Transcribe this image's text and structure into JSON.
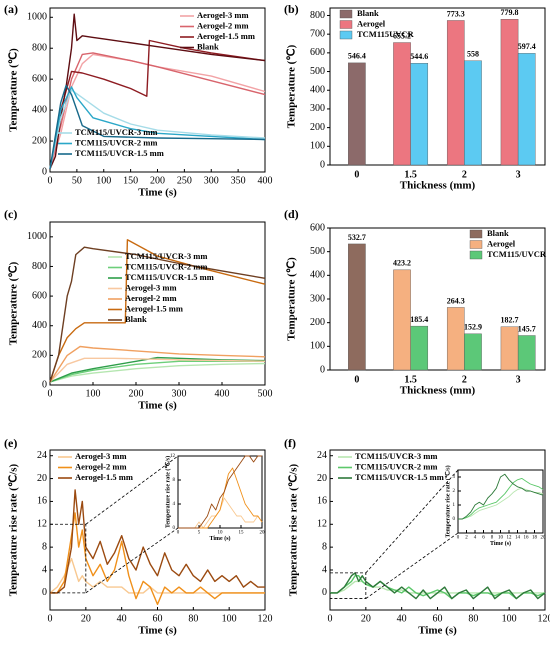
{
  "chart_data": [
    {
      "type": "line",
      "label": "(a)",
      "xlabel": "Time (s)",
      "ylabel": "Temperature (℃)",
      "xlim": [
        0,
        400
      ],
      "xticks": [
        0,
        50,
        100,
        150,
        200,
        250,
        300,
        350,
        400
      ],
      "ylim": [
        0,
        1060
      ],
      "yticks": [
        0,
        200,
        400,
        600,
        800,
        1000
      ],
      "series": [
        {
          "name": "Aerogel-3 mm",
          "color": "#f2a3a6",
          "x": [
            0,
            20,
            40,
            60,
            80,
            150,
            200,
            300,
            400
          ],
          "values": [
            20,
            250,
            550,
            700,
            760,
            720,
            680,
            620,
            520
          ]
        },
        {
          "name": "Aerogel-2 mm",
          "color": "#d8646c",
          "x": [
            0,
            20,
            40,
            60,
            80,
            150,
            200,
            300,
            400
          ],
          "values": [
            20,
            300,
            600,
            760,
            770,
            720,
            680,
            590,
            500
          ]
        },
        {
          "name": "Aerogel-1.5 mm",
          "color": "#8e1c22",
          "x": [
            0,
            20,
            40,
            60,
            100,
            150,
            180,
            185,
            250,
            300,
            400
          ],
          "values": [
            20,
            400,
            650,
            640,
            600,
            540,
            490,
            850,
            800,
            770,
            720
          ]
        },
        {
          "name": "Blank",
          "color": "#5e0d12",
          "x": [
            0,
            10,
            20,
            30,
            40,
            45,
            50,
            60,
            80,
            100,
            200,
            300,
            400
          ],
          "values": [
            20,
            100,
            350,
            550,
            800,
            1020,
            850,
            880,
            870,
            860,
            810,
            760,
            720
          ]
        },
        {
          "name": "TCM115/UVCR-3 mm",
          "color": "#a6dce8",
          "x": [
            0,
            20,
            40,
            60,
            100,
            150,
            200,
            300,
            400
          ],
          "values": [
            20,
            350,
            530,
            480,
            380,
            310,
            270,
            240,
            220
          ]
        },
        {
          "name": "TCM115/UVCR-2 mm",
          "color": "#2aa7c8",
          "x": [
            0,
            20,
            40,
            50,
            80,
            150,
            200,
            300,
            400
          ],
          "values": [
            20,
            400,
            550,
            480,
            350,
            280,
            250,
            230,
            210
          ]
        },
        {
          "name": "TCM115/UVCR-1.5 mm",
          "color": "#17698a",
          "x": [
            0,
            20,
            30,
            40,
            60,
            100,
            200,
            300,
            400
          ],
          "values": [
            20,
            450,
            560,
            500,
            300,
            230,
            220,
            215,
            210
          ]
        }
      ]
    },
    {
      "type": "bar",
      "label": "(b)",
      "xlabel": "Thickness (mm)",
      "ylabel": "Temperature (℃)",
      "categories": [
        "0",
        "1.5",
        "2",
        "3"
      ],
      "ylim": [
        0,
        840
      ],
      "yticks": [
        0,
        100,
        200,
        300,
        400,
        500,
        600,
        700,
        800
      ],
      "series": [
        {
          "name": "Blank",
          "color": "#8c6a6a",
          "values": [
            546.4,
            null,
            null,
            null
          ]
        },
        {
          "name": "Aerogel",
          "color": "#ec7680",
          "values": [
            null,
            655.2,
            773.3,
            779.8
          ]
        },
        {
          "name": "TCM115UVCR",
          "color": "#5ccaf2",
          "values": [
            null,
            544.6,
            558,
            597.4
          ]
        }
      ]
    },
    {
      "type": "line",
      "label": "(c)",
      "xlabel": "Time (s)",
      "ylabel": "Temperature (℃)",
      "xlim": [
        0,
        500
      ],
      "xticks": [
        0,
        100,
        200,
        300,
        400,
        500
      ],
      "ylim": [
        0,
        1100
      ],
      "yticks": [
        0,
        200,
        400,
        600,
        800,
        1000
      ],
      "series": [
        {
          "name": "TCM115/UVCR-3 mm",
          "color": "#b5e6b0",
          "x": [
            0,
            50,
            100,
            200,
            300,
            400,
            500
          ],
          "values": [
            20,
            60,
            80,
            110,
            130,
            140,
            145
          ]
        },
        {
          "name": "TCM115/UVCR-2 mm",
          "color": "#6ccf7a",
          "x": [
            0,
            50,
            100,
            200,
            300,
            400,
            500
          ],
          "values": [
            20,
            70,
            100,
            140,
            160,
            160,
            160
          ]
        },
        {
          "name": "TCM115/UVCR-1.5 mm",
          "color": "#2e9e4a",
          "x": [
            0,
            50,
            100,
            200,
            250,
            300,
            400,
            500
          ],
          "values": [
            20,
            80,
            110,
            160,
            185,
            180,
            170,
            165
          ]
        },
        {
          "name": "Aerogel-3 mm",
          "color": "#f8c8a0",
          "x": [
            0,
            40,
            80,
            150,
            300,
            500
          ],
          "values": [
            20,
            140,
            180,
            180,
            170,
            160
          ]
        },
        {
          "name": "Aerogel-2 mm",
          "color": "#f0a060",
          "x": [
            0,
            40,
            70,
            100,
            200,
            300,
            400,
            500
          ],
          "values": [
            20,
            200,
            260,
            250,
            230,
            210,
            200,
            190
          ]
        },
        {
          "name": "Aerogel-1.5 mm",
          "color": "#c86a10",
          "x": [
            0,
            20,
            40,
            60,
            80,
            100,
            175,
            180,
            250,
            350,
            500
          ],
          "values": [
            20,
            200,
            320,
            380,
            420,
            420,
            420,
            980,
            870,
            790,
            680
          ]
        },
        {
          "name": "Blank",
          "color": "#6e3f22",
          "x": [
            0,
            20,
            40,
            50,
            60,
            80,
            100,
            200,
            300,
            400,
            500
          ],
          "values": [
            20,
            200,
            600,
            700,
            880,
            930,
            920,
            880,
            820,
            770,
            720
          ]
        }
      ]
    },
    {
      "type": "bar",
      "label": "(d)",
      "xlabel": "Thickness (mm)",
      "ylabel": "Temperature (℃)",
      "categories": [
        "0",
        "1.5",
        "2",
        "3"
      ],
      "ylim": [
        0,
        600
      ],
      "yticks": [
        0,
        100,
        200,
        300,
        400,
        500,
        600
      ],
      "series": [
        {
          "name": "Blank",
          "color": "#8e6b5e",
          "values": [
            532.7,
            null,
            null,
            null
          ]
        },
        {
          "name": "Aerogel",
          "color": "#f5b080",
          "values": [
            null,
            423.2,
            264.3,
            182.7
          ]
        },
        {
          "name": "TCM115/UVCR",
          "color": "#5cc878",
          "values": [
            null,
            185.4,
            152.9,
            145.7
          ]
        }
      ]
    },
    {
      "type": "line",
      "label": "(e)",
      "xlabel": "Time (s)",
      "ylabel": "Temperature rise rate (℃/s)",
      "xlim": [
        0,
        120
      ],
      "xticks": [
        0,
        20,
        40,
        60,
        80,
        100,
        120
      ],
      "ylim": [
        -3,
        25
      ],
      "yticks": [
        0,
        4,
        8,
        12,
        16,
        20,
        24
      ],
      "x": [
        0,
        4,
        8,
        12,
        14,
        16,
        18,
        20,
        24,
        28,
        32,
        36,
        40,
        44,
        48,
        52,
        56,
        60,
        64,
        68,
        72,
        76,
        80,
        84,
        88,
        92,
        96,
        100,
        104,
        108,
        112,
        116,
        120
      ],
      "series": [
        {
          "name": "Aerogel-3 mm",
          "color": "#f8c890",
          "values": [
            0,
            1,
            3,
            6,
            4,
            2,
            3,
            2,
            1,
            2,
            1,
            1,
            1,
            0,
            0,
            0,
            1,
            0,
            0,
            0,
            0,
            0,
            0,
            0,
            0,
            0,
            0,
            0,
            0,
            0,
            0,
            0,
            0
          ]
        },
        {
          "name": "Aerogel-2 mm",
          "color": "#f0901a",
          "values": [
            0,
            0,
            2,
            10,
            14,
            8,
            11,
            6,
            3,
            5,
            2,
            4,
            9,
            3,
            -1,
            2,
            1,
            -2,
            1,
            0,
            1,
            0,
            0,
            1,
            0,
            -1,
            0,
            0,
            0,
            0,
            0,
            0,
            0
          ]
        },
        {
          "name": "Aerogel-1.5 mm",
          "color": "#9b4a10",
          "values": [
            0,
            0,
            1,
            8,
            18,
            12,
            16,
            8,
            6,
            9,
            5,
            7,
            10,
            6,
            4,
            8,
            5,
            3,
            7,
            4,
            3,
            5,
            3,
            2,
            4,
            2,
            3,
            2,
            3,
            1,
            2,
            1,
            1
          ]
        }
      ],
      "inset": {
        "xlabel": "Time (s)",
        "ylabel": "Temperature rise rate (℃/s)",
        "xlim": [
          0,
          20
        ],
        "xticks": [
          0,
          5,
          10,
          15,
          20
        ],
        "ylim": [
          0,
          12
        ],
        "yticks": [
          0,
          4,
          8,
          12
        ],
        "x": [
          0,
          1,
          2,
          3,
          4,
          5,
          6,
          7,
          8,
          9,
          10,
          11,
          12,
          13,
          14,
          15,
          16,
          17,
          18,
          19,
          20
        ],
        "series": [
          {
            "color": "#f8c890",
            "values": [
              0,
              0,
              0,
              0,
              0,
              1,
              0,
              1,
              2,
              2,
              3,
              5,
              4,
              3,
              2,
              2,
              1,
              1,
              1,
              2,
              1
            ]
          },
          {
            "color": "#f0901a",
            "values": [
              0,
              0,
              0,
              0,
              0,
              0,
              0,
              0,
              1,
              2,
              3,
              6,
              9,
              10,
              8,
              6,
              4,
              3,
              2,
              2,
              1
            ]
          },
          {
            "color": "#9b4a10",
            "values": [
              0,
              0,
              0,
              0,
              0,
              0,
              1,
              2,
              4,
              3,
              5,
              6,
              8,
              9,
              10,
              11,
              12,
              12,
              11,
              12,
              12
            ]
          }
        ]
      }
    },
    {
      "type": "line",
      "label": "(f)",
      "xlabel": "Time (s)",
      "ylabel": "Temperature rise rate (℃/s)",
      "xlim": [
        0,
        120
      ],
      "xticks": [
        0,
        20,
        40,
        60,
        80,
        100,
        120
      ],
      "ylim": [
        -3,
        25
      ],
      "yticks": [
        0,
        4,
        8,
        12,
        16,
        20,
        24
      ],
      "x": [
        0,
        4,
        8,
        12,
        14,
        16,
        18,
        20,
        24,
        28,
        32,
        36,
        40,
        44,
        48,
        52,
        56,
        60,
        64,
        68,
        72,
        76,
        80,
        84,
        88,
        92,
        96,
        100,
        104,
        108,
        112,
        116,
        120
      ],
      "series": [
        {
          "name": "TCM115/UVCR-3 mm",
          "color": "#b8e6b0",
          "values": [
            0,
            0,
            0.5,
            1.5,
            2,
            2,
            2,
            1.5,
            1,
            1,
            0.5,
            0.5,
            0.5,
            0,
            0,
            0,
            0,
            0,
            0,
            0,
            0,
            0,
            0,
            0,
            0,
            0,
            0,
            0,
            0,
            0,
            0,
            0,
            0
          ]
        },
        {
          "name": "TCM115/UVCR-2 mm",
          "color": "#5cc86a",
          "values": [
            0,
            0,
            1,
            2,
            3,
            3,
            2,
            1.5,
            1,
            2,
            1,
            0.5,
            0,
            1,
            0,
            -0.5,
            0,
            0.5,
            0,
            -1,
            0,
            0,
            -0.5,
            0,
            0,
            -0.5,
            0,
            0,
            -1,
            0,
            0,
            -0.5,
            0
          ]
        },
        {
          "name": "TCM115/UVCR-1.5 mm",
          "color": "#2e7a3a",
          "values": [
            0,
            0,
            1,
            3,
            3.5,
            2,
            3,
            2,
            1,
            2,
            1,
            0,
            1,
            0,
            -1,
            0.5,
            -1,
            0,
            1,
            -1,
            0,
            0.5,
            -1,
            0,
            1,
            -1,
            0,
            0.5,
            -1,
            0,
            0.5,
            -1,
            0
          ]
        }
      ],
      "inset": {
        "xlabel": "Time (s)",
        "ylabel": "Temperature rise rate (℃/s)",
        "xlim": [
          0,
          20
        ],
        "xticks": [
          0,
          2,
          4,
          6,
          8,
          10,
          12,
          14,
          16,
          18,
          20
        ],
        "ylim": [
          -1,
          3.5
        ],
        "yticks": [
          0,
          1,
          2,
          3
        ],
        "x": [
          0,
          1,
          2,
          3,
          4,
          5,
          6,
          7,
          8,
          9,
          10,
          11,
          12,
          13,
          14,
          15,
          16,
          17,
          18,
          19,
          20
        ],
        "series": [
          {
            "color": "#b8e6b0",
            "values": [
              0,
              0,
              0.1,
              0.2,
              0.4,
              0.6,
              0.7,
              0.8,
              0.9,
              1,
              1.2,
              1.4,
              1.6,
              1.9,
              2.1,
              2.2,
              2.1,
              2,
              1.9,
              1.9,
              1.8
            ]
          },
          {
            "color": "#5cc86a",
            "values": [
              0,
              0,
              0.1,
              0.3,
              0.6,
              0.8,
              0.9,
              1,
              1.1,
              1.2,
              1.5,
              1.8,
              2.2,
              2.6,
              2.8,
              2.9,
              2.7,
              2.5,
              2.4,
              2.3,
              2.1
            ]
          },
          {
            "color": "#2e7a3a",
            "values": [
              0,
              0,
              0.2,
              0.5,
              1,
              1.2,
              1,
              1.5,
              1.8,
              2.2,
              3,
              3.2,
              2.8,
              2.5,
              2.3,
              2.2,
              2,
              2,
              1.9,
              1.8,
              1.7
            ]
          }
        ]
      }
    }
  ]
}
